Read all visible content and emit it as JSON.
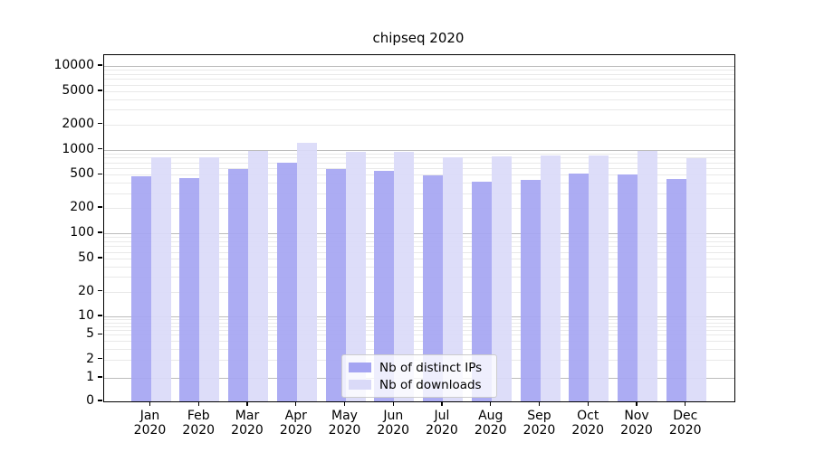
{
  "title": "chipseq 2020",
  "chart_data": {
    "type": "bar",
    "title": "chipseq 2020",
    "categories": [
      "Jan 2020",
      "Feb 2020",
      "Mar 2020",
      "Apr 2020",
      "May 2020",
      "Jun 2020",
      "Jul 2020",
      "Aug 2020",
      "Sep 2020",
      "Oct 2020",
      "Nov 2020",
      "Dec 2020"
    ],
    "series": [
      {
        "name": "Nb of distinct IPs",
        "color": "#a5a5f2",
        "values": [
          485,
          460,
          590,
          695,
          585,
          555,
          490,
          415,
          430,
          515,
          505,
          450
        ]
      },
      {
        "name": "Nb of downloads",
        "color": "#dadaf8",
        "values": [
          810,
          815,
          975,
          1210,
          930,
          950,
          815,
          820,
          845,
          845,
          970,
          795
        ]
      }
    ],
    "yscale": "symlog",
    "yticks": [
      0,
      1,
      2,
      5,
      10,
      20,
      50,
      100,
      200,
      500,
      1000,
      2000,
      5000,
      10000
    ],
    "ylim": [
      0,
      13500
    ],
    "xlabel": "",
    "ylabel": "",
    "grid": "both",
    "legend_position": "lower center"
  }
}
